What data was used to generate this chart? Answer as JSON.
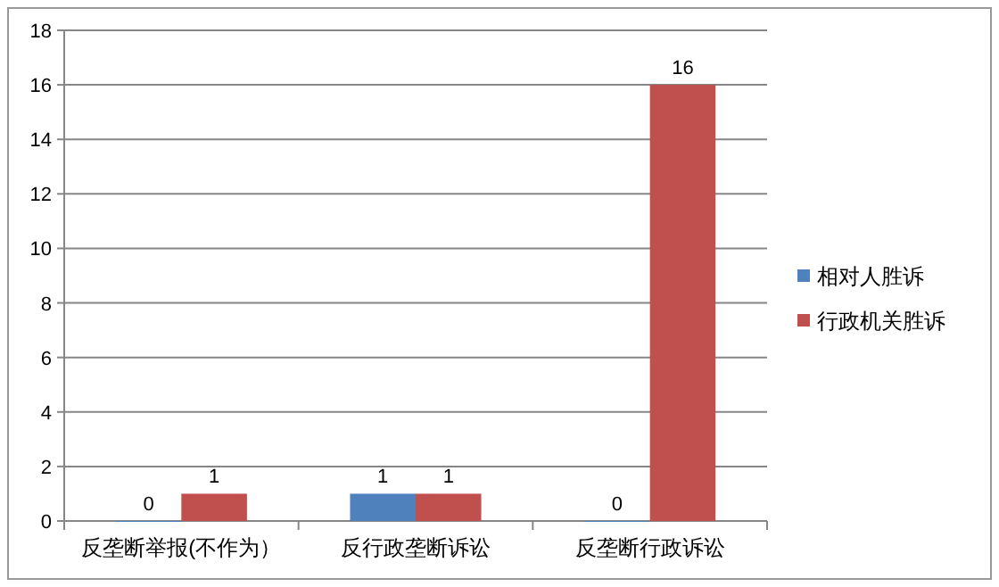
{
  "chart_data": {
    "type": "bar",
    "categories": [
      "反垄断举报(不作为）",
      "反行政垄断诉讼",
      "反垄断行政诉讼"
    ],
    "series": [
      {
        "name": "相对人胜诉",
        "color": "#4f81bd",
        "values": [
          0,
          1,
          0
        ]
      },
      {
        "name": "行政机关胜诉",
        "color": "#c0504d",
        "values": [
          1,
          1,
          16
        ]
      }
    ],
    "ylim": [
      0,
      18
    ],
    "yticks": [
      0,
      2,
      4,
      6,
      8,
      10,
      12,
      14,
      16,
      18
    ],
    "grid": "y",
    "legend": "right",
    "data_labels": true
  }
}
